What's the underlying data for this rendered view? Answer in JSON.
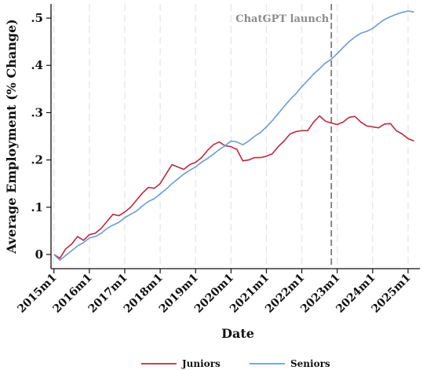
{
  "chart_data": {
    "type": "line",
    "xlabel": "Date",
    "ylabel": "Average Employment (% Change)",
    "x_tick_labels": [
      "2015m1",
      "2016m1",
      "2017m1",
      "2018m1",
      "2019m1",
      "2020m1",
      "2021m1",
      "2022m1",
      "2023m1",
      "2024m1",
      "2025m1"
    ],
    "y_ticks": [
      0,
      0.1,
      0.2,
      0.3,
      0.4,
      0.5
    ],
    "y_tick_labels": [
      "0",
      ".1",
      ".2",
      ".3",
      ".4",
      ".5"
    ],
    "ylim": [
      -0.03,
      0.53
    ],
    "xlim": [
      "2014-12",
      "2025-05"
    ],
    "grid": "vertical dashed",
    "annotation": {
      "x": "2022-11",
      "label": "ChatGPT launch",
      "style": "dashed vertical line"
    },
    "legend": {
      "position": "bottom"
    },
    "series": [
      {
        "name": "Juniors",
        "color": "#c0283e",
        "points": [
          [
            "2015-01",
            0.0
          ],
          [
            "2015-03",
            -0.008
          ],
          [
            "2015-05",
            0.012
          ],
          [
            "2015-07",
            0.022
          ],
          [
            "2015-09",
            0.038
          ],
          [
            "2015-11",
            0.03
          ],
          [
            "2016-01",
            0.042
          ],
          [
            "2016-03",
            0.045
          ],
          [
            "2016-05",
            0.055
          ],
          [
            "2016-07",
            0.07
          ],
          [
            "2016-09",
            0.085
          ],
          [
            "2016-11",
            0.082
          ],
          [
            "2017-01",
            0.09
          ],
          [
            "2017-03",
            0.1
          ],
          [
            "2017-05",
            0.115
          ],
          [
            "2017-07",
            0.13
          ],
          [
            "2017-09",
            0.142
          ],
          [
            "2017-11",
            0.14
          ],
          [
            "2018-01",
            0.15
          ],
          [
            "2018-03",
            0.17
          ],
          [
            "2018-05",
            0.19
          ],
          [
            "2018-07",
            0.185
          ],
          [
            "2018-09",
            0.18
          ],
          [
            "2018-11",
            0.19
          ],
          [
            "2019-01",
            0.195
          ],
          [
            "2019-03",
            0.205
          ],
          [
            "2019-05",
            0.22
          ],
          [
            "2019-07",
            0.232
          ],
          [
            "2019-09",
            0.238
          ],
          [
            "2019-11",
            0.23
          ],
          [
            "2020-01",
            0.228
          ],
          [
            "2020-03",
            0.222
          ],
          [
            "2020-05",
            0.198
          ],
          [
            "2020-07",
            0.2
          ],
          [
            "2020-09",
            0.205
          ],
          [
            "2020-11",
            0.205
          ],
          [
            "2021-01",
            0.208
          ],
          [
            "2021-03",
            0.213
          ],
          [
            "2021-05",
            0.228
          ],
          [
            "2021-07",
            0.24
          ],
          [
            "2021-09",
            0.255
          ],
          [
            "2021-11",
            0.26
          ],
          [
            "2022-01",
            0.262
          ],
          [
            "2022-03",
            0.262
          ],
          [
            "2022-05",
            0.28
          ],
          [
            "2022-07",
            0.293
          ],
          [
            "2022-09",
            0.282
          ],
          [
            "2022-11",
            0.278
          ],
          [
            "2023-01",
            0.275
          ],
          [
            "2023-03",
            0.28
          ],
          [
            "2023-05",
            0.29
          ],
          [
            "2023-07",
            0.292
          ],
          [
            "2023-09",
            0.28
          ],
          [
            "2023-11",
            0.272
          ],
          [
            "2024-01",
            0.27
          ],
          [
            "2024-03",
            0.268
          ],
          [
            "2024-05",
            0.276
          ],
          [
            "2024-07",
            0.277
          ],
          [
            "2024-09",
            0.262
          ],
          [
            "2024-11",
            0.255
          ],
          [
            "2025-01",
            0.245
          ],
          [
            "2025-03",
            0.24
          ]
        ]
      },
      {
        "name": "Seniors",
        "color": "#6a9cd6",
        "points": [
          [
            "2015-01",
            0.0
          ],
          [
            "2015-03",
            -0.012
          ],
          [
            "2015-05",
            -0.002
          ],
          [
            "2015-07",
            0.008
          ],
          [
            "2015-09",
            0.018
          ],
          [
            "2015-11",
            0.025
          ],
          [
            "2016-01",
            0.035
          ],
          [
            "2016-03",
            0.038
          ],
          [
            "2016-05",
            0.045
          ],
          [
            "2016-07",
            0.055
          ],
          [
            "2016-09",
            0.062
          ],
          [
            "2016-11",
            0.068
          ],
          [
            "2017-01",
            0.078
          ],
          [
            "2017-03",
            0.085
          ],
          [
            "2017-05",
            0.092
          ],
          [
            "2017-07",
            0.103
          ],
          [
            "2017-09",
            0.112
          ],
          [
            "2017-11",
            0.118
          ],
          [
            "2018-01",
            0.128
          ],
          [
            "2018-03",
            0.138
          ],
          [
            "2018-05",
            0.15
          ],
          [
            "2018-07",
            0.16
          ],
          [
            "2018-09",
            0.17
          ],
          [
            "2018-11",
            0.178
          ],
          [
            "2019-01",
            0.185
          ],
          [
            "2019-03",
            0.195
          ],
          [
            "2019-05",
            0.203
          ],
          [
            "2019-07",
            0.212
          ],
          [
            "2019-09",
            0.222
          ],
          [
            "2019-11",
            0.23
          ],
          [
            "2020-01",
            0.24
          ],
          [
            "2020-03",
            0.238
          ],
          [
            "2020-05",
            0.232
          ],
          [
            "2020-07",
            0.24
          ],
          [
            "2020-09",
            0.25
          ],
          [
            "2020-11",
            0.258
          ],
          [
            "2021-01",
            0.27
          ],
          [
            "2021-03",
            0.283
          ],
          [
            "2021-05",
            0.298
          ],
          [
            "2021-07",
            0.313
          ],
          [
            "2021-09",
            0.328
          ],
          [
            "2021-11",
            0.34
          ],
          [
            "2022-01",
            0.355
          ],
          [
            "2022-03",
            0.368
          ],
          [
            "2022-05",
            0.382
          ],
          [
            "2022-07",
            0.393
          ],
          [
            "2022-09",
            0.405
          ],
          [
            "2022-11",
            0.413
          ],
          [
            "2023-01",
            0.425
          ],
          [
            "2023-03",
            0.438
          ],
          [
            "2023-05",
            0.45
          ],
          [
            "2023-07",
            0.46
          ],
          [
            "2023-09",
            0.468
          ],
          [
            "2023-11",
            0.472
          ],
          [
            "2024-01",
            0.478
          ],
          [
            "2024-03",
            0.488
          ],
          [
            "2024-05",
            0.497
          ],
          [
            "2024-07",
            0.503
          ],
          [
            "2024-09",
            0.508
          ],
          [
            "2024-11",
            0.512
          ],
          [
            "2025-01",
            0.515
          ],
          [
            "2025-03",
            0.513
          ]
        ]
      }
    ]
  }
}
